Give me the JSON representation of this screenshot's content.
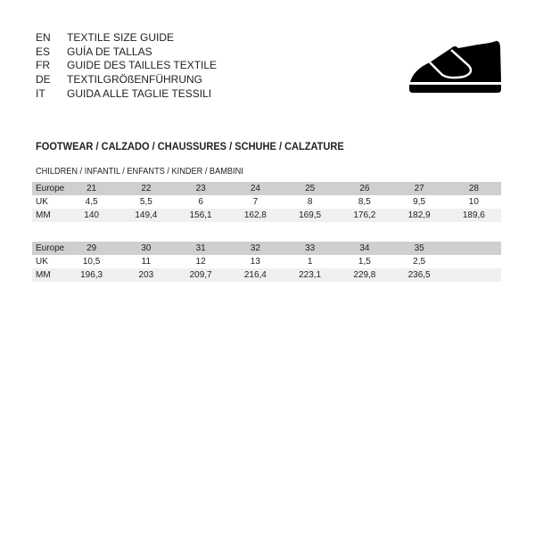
{
  "languages": [
    {
      "code": "EN",
      "title": "TEXTILE SIZE GUIDE"
    },
    {
      "code": "ES",
      "title": "GUÍA DE TALLAS"
    },
    {
      "code": "FR",
      "title": "GUIDE DES TAILLES TEXTILE"
    },
    {
      "code": "DE",
      "title": "TEXTILGRÖßENFÜHRUNG"
    },
    {
      "code": "IT",
      "title": "GUIDA ALLE TAGLIE TESSILI"
    }
  ],
  "section_title": "FOOTWEAR / CALZADO / CHAUSSURES / SCHUHE / CALZATURE",
  "subsection_title": "CHILDREN / INFANTIL / ENFANTS / KINDER / BAMBINI",
  "icon": "shoe-icon",
  "tables": [
    {
      "rows": [
        {
          "label": "Europe",
          "values": [
            "21",
            "22",
            "23",
            "24",
            "25",
            "26",
            "27",
            "28"
          ]
        },
        {
          "label": "UK",
          "values": [
            "4,5",
            "5,5",
            "6",
            "7",
            "8",
            "8,5",
            "9,5",
            "10"
          ]
        },
        {
          "label": "MM",
          "values": [
            "140",
            "149,4",
            "156,1",
            "162,8",
            "169,5",
            "176,2",
            "182,9",
            "189,6"
          ]
        }
      ]
    },
    {
      "rows": [
        {
          "label": "Europe",
          "values": [
            "29",
            "30",
            "31",
            "32",
            "33",
            "34",
            "35",
            ""
          ]
        },
        {
          "label": "UK",
          "values": [
            "10,5",
            "11",
            "12",
            "13",
            "1",
            "1,5",
            "2,5",
            ""
          ]
        },
        {
          "label": "MM",
          "values": [
            "196,3",
            "203",
            "209,7",
            "216,4",
            "223,1",
            "229,8",
            "236,5",
            ""
          ]
        }
      ]
    }
  ]
}
